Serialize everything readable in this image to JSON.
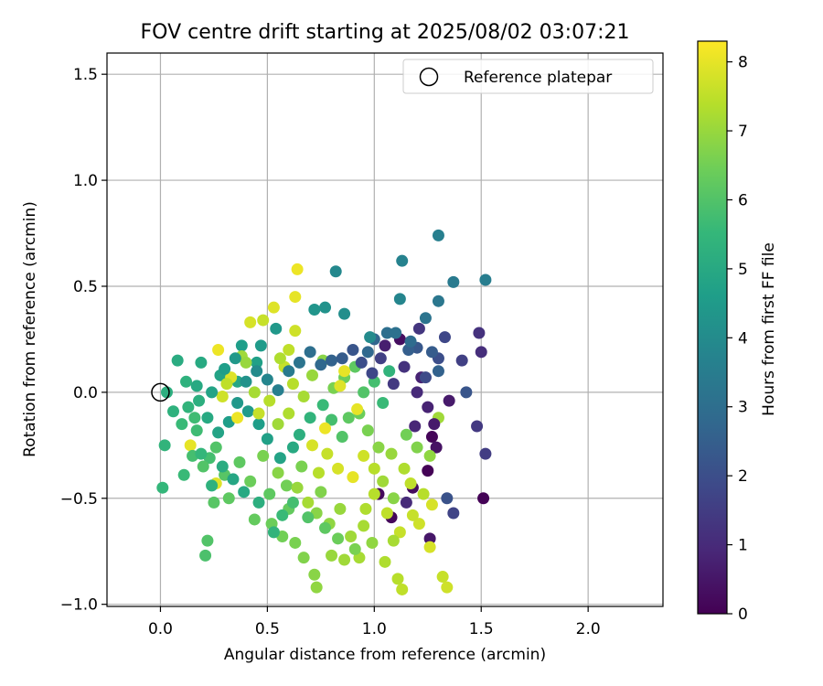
{
  "chart_data": {
    "type": "scatter",
    "title": "FOV centre drift starting at 2025/08/02 03:07:21",
    "xlabel": "Angular distance from reference (arcmin)",
    "ylabel": "Rotation from reference (arcmin)",
    "xlim": [
      -0.25,
      2.35
    ],
    "ylim": [
      -1.01,
      1.6
    ],
    "xticks": [
      0.0,
      0.5,
      1.0,
      1.5,
      2.0
    ],
    "xtick_labels": [
      "0.0",
      "0.5",
      "1.0",
      "1.5",
      "2.0"
    ],
    "yticks": [
      -1.0,
      -0.5,
      0.0,
      0.5,
      1.0,
      1.5
    ],
    "ytick_labels": [
      "−1.0",
      "−0.5",
      "0.0",
      "0.5",
      "1.0",
      "1.5"
    ],
    "grid": true,
    "legend": {
      "placement": "top-right",
      "entries": [
        "Reference platepar"
      ]
    },
    "reference_point": {
      "label": "Reference platepar",
      "x": 0.0,
      "y": 0.0
    },
    "colorbar": {
      "label": "Hours from first FF file",
      "colormap": "viridis",
      "range": [
        0,
        8.3
      ],
      "ticks": [
        0,
        1,
        2,
        3,
        4,
        5,
        6,
        7,
        8
      ],
      "tick_labels": [
        "0",
        "1",
        "2",
        "3",
        "4",
        "5",
        "6",
        "7",
        "8"
      ]
    },
    "colormap_stops": [
      "#440154",
      "#482878",
      "#3e4989",
      "#31688e",
      "#26828e",
      "#1f9e89",
      "#35b779",
      "#6ece58",
      "#b5de2b",
      "#fde725"
    ],
    "series": [
      {
        "points": [
          [
            1.51,
            -0.5,
            0.05
          ],
          [
            1.25,
            -0.37,
            0.05
          ],
          [
            1.27,
            -0.21,
            0.1
          ],
          [
            1.08,
            -0.59,
            0.15
          ],
          [
            1.02,
            -0.48,
            0.2
          ],
          [
            1.18,
            -0.45,
            0.25
          ],
          [
            1.12,
            0.25,
            0.3
          ],
          [
            1.29,
            -0.26,
            0.4
          ],
          [
            1.26,
            -0.69,
            0.5
          ],
          [
            1.35,
            -0.04,
            0.6
          ],
          [
            1.05,
            0.22,
            0.7
          ],
          [
            1.22,
            0.07,
            0.8
          ],
          [
            1.19,
            -0.16,
            0.9
          ],
          [
            1.15,
            -0.52,
            1.0
          ],
          [
            1.5,
            0.19,
            1.1
          ],
          [
            1.49,
            0.28,
            1.2
          ],
          [
            1.21,
            0.3,
            1.3
          ],
          [
            1.48,
            -0.16,
            1.4
          ],
          [
            1.52,
            -0.29,
            1.5
          ],
          [
            1.41,
            0.15,
            1.6
          ],
          [
            1.37,
            -0.57,
            1.7
          ],
          [
            1.33,
            0.26,
            1.8
          ],
          [
            1.24,
            0.07,
            1.9
          ],
          [
            1.3,
            0.16,
            2.0
          ],
          [
            1.34,
            -0.5,
            2.1
          ],
          [
            1.43,
            0.0,
            2.2
          ],
          [
            1.2,
            0.21,
            2.3
          ],
          [
            1.27,
            0.19,
            2.4
          ],
          [
            1.16,
            0.2,
            2.5
          ],
          [
            1.3,
            0.1,
            2.6
          ],
          [
            1.0,
            0.25,
            2.7
          ],
          [
            0.97,
            0.19,
            2.8
          ],
          [
            1.17,
            0.24,
            2.9
          ],
          [
            1.06,
            0.28,
            3.0
          ],
          [
            1.1,
            0.28,
            3.1
          ],
          [
            1.24,
            0.35,
            3.2
          ],
          [
            1.3,
            0.43,
            3.3
          ],
          [
            1.37,
            0.52,
            3.4
          ],
          [
            1.52,
            0.53,
            3.5
          ],
          [
            1.3,
            0.74,
            3.6
          ],
          [
            1.13,
            0.62,
            3.7
          ],
          [
            1.12,
            0.44,
            3.8
          ],
          [
            0.82,
            0.57,
            3.9
          ],
          [
            0.98,
            0.26,
            4.0
          ],
          [
            0.86,
            0.37,
            4.1
          ],
          [
            0.77,
            0.4,
            4.2
          ],
          [
            0.72,
            0.39,
            4.3
          ],
          [
            0.54,
            0.3,
            4.4
          ],
          [
            0.47,
            0.22,
            4.5
          ],
          [
            0.38,
            0.22,
            4.6
          ],
          [
            0.45,
            0.14,
            4.7
          ],
          [
            0.28,
            0.08,
            4.8
          ],
          [
            0.36,
            0.05,
            4.9
          ],
          [
            0.19,
            0.14,
            5.0
          ],
          [
            0.08,
            0.15,
            5.1
          ],
          [
            0.03,
            0.0,
            5.2
          ],
          [
            0.06,
            -0.09,
            5.3
          ],
          [
            0.02,
            -0.25,
            5.4
          ],
          [
            0.01,
            -0.45,
            5.5
          ],
          [
            0.11,
            -0.39,
            5.6
          ],
          [
            0.17,
            -0.18,
            5.7
          ],
          [
            0.23,
            -0.31,
            5.8
          ],
          [
            0.21,
            -0.77,
            5.9
          ],
          [
            0.22,
            -0.7,
            6.0
          ],
          [
            0.25,
            -0.52,
            6.1
          ],
          [
            0.32,
            -0.5,
            6.2
          ],
          [
            0.44,
            -0.6,
            6.3
          ],
          [
            0.52,
            -0.62,
            6.4
          ],
          [
            0.57,
            -0.68,
            6.5
          ],
          [
            0.63,
            -0.71,
            6.6
          ],
          [
            0.67,
            -0.78,
            6.7
          ],
          [
            0.72,
            -0.86,
            6.8
          ],
          [
            0.73,
            -0.92,
            6.9
          ],
          [
            0.8,
            -0.77,
            7.0
          ],
          [
            0.86,
            -0.79,
            7.1
          ],
          [
            0.93,
            -0.78,
            7.2
          ],
          [
            1.05,
            -0.8,
            7.3
          ],
          [
            1.11,
            -0.88,
            7.4
          ],
          [
            1.13,
            -0.93,
            7.5
          ],
          [
            1.32,
            -0.87,
            7.6
          ],
          [
            1.34,
            -0.92,
            7.7
          ],
          [
            1.26,
            -0.73,
            7.8
          ],
          [
            0.26,
            -0.43,
            7.9
          ],
          [
            0.14,
            -0.25,
            8.0
          ],
          [
            0.27,
            0.2,
            8.1
          ],
          [
            0.26,
            -0.26,
            6.0
          ],
          [
            0.3,
            -0.39,
            6.1
          ],
          [
            0.51,
            -0.48,
            6.2
          ],
          [
            0.6,
            -0.55,
            6.3
          ],
          [
            0.59,
            -0.44,
            6.5
          ],
          [
            0.66,
            -0.35,
            6.6
          ],
          [
            0.75,
            -0.47,
            6.7
          ],
          [
            0.73,
            -0.57,
            6.8
          ],
          [
            0.79,
            -0.62,
            6.9
          ],
          [
            0.84,
            -0.55,
            7.0
          ],
          [
            0.89,
            -0.68,
            7.1
          ],
          [
            0.95,
            -0.63,
            7.2
          ],
          [
            0.96,
            -0.55,
            7.3
          ],
          [
            1.0,
            -0.48,
            7.4
          ],
          [
            1.06,
            -0.57,
            7.5
          ],
          [
            1.12,
            -0.66,
            7.6
          ],
          [
            1.21,
            -0.62,
            7.7
          ],
          [
            1.27,
            -0.53,
            7.8
          ],
          [
            1.17,
            -0.43,
            7.5
          ],
          [
            1.14,
            -0.36,
            7.3
          ],
          [
            1.08,
            -0.29,
            7.0
          ],
          [
            1.02,
            -0.26,
            6.8
          ],
          [
            0.97,
            -0.18,
            6.6
          ],
          [
            0.93,
            -0.1,
            6.4
          ],
          [
            0.88,
            -0.12,
            6.2
          ],
          [
            0.85,
            -0.21,
            6.0
          ],
          [
            0.8,
            -0.13,
            5.8
          ],
          [
            0.76,
            -0.06,
            5.6
          ],
          [
            0.7,
            -0.12,
            5.4
          ],
          [
            0.65,
            -0.2,
            5.2
          ],
          [
            0.62,
            -0.26,
            5.0
          ],
          [
            0.56,
            -0.31,
            4.8
          ],
          [
            0.5,
            -0.22,
            4.7
          ],
          [
            0.46,
            -0.15,
            4.6
          ],
          [
            0.41,
            -0.09,
            4.5
          ],
          [
            0.36,
            -0.05,
            4.4
          ],
          [
            0.32,
            -0.14,
            4.6
          ],
          [
            0.27,
            -0.19,
            4.8
          ],
          [
            0.22,
            -0.12,
            5.0
          ],
          [
            0.18,
            -0.04,
            5.2
          ],
          [
            0.13,
            -0.07,
            5.4
          ],
          [
            0.1,
            -0.15,
            5.6
          ],
          [
            0.15,
            -0.3,
            5.8
          ],
          [
            0.2,
            -0.35,
            6.0
          ],
          [
            0.37,
            -0.33,
            6.2
          ],
          [
            0.42,
            -0.42,
            6.4
          ],
          [
            0.48,
            -0.3,
            6.6
          ],
          [
            0.55,
            -0.38,
            6.8
          ],
          [
            0.64,
            -0.45,
            7.0
          ],
          [
            0.69,
            -0.52,
            7.2
          ],
          [
            0.74,
            -0.38,
            7.4
          ],
          [
            0.78,
            -0.29,
            7.6
          ],
          [
            0.83,
            -0.36,
            7.8
          ],
          [
            0.9,
            -0.4,
            8.0
          ],
          [
            0.95,
            -0.3,
            7.7
          ],
          [
            1.0,
            -0.36,
            7.4
          ],
          [
            1.04,
            -0.42,
            7.1
          ],
          [
            1.09,
            -0.5,
            6.8
          ],
          [
            0.58,
            0.12,
            7.6
          ],
          [
            0.62,
            0.04,
            7.4
          ],
          [
            0.67,
            -0.02,
            7.2
          ],
          [
            0.71,
            0.08,
            7.0
          ],
          [
            0.76,
            0.15,
            6.8
          ],
          [
            0.81,
            0.02,
            6.6
          ],
          [
            0.86,
            0.07,
            6.4
          ],
          [
            0.91,
            0.12,
            6.2
          ],
          [
            0.95,
            0.0,
            6.0
          ],
          [
            1.0,
            0.05,
            5.8
          ],
          [
            1.04,
            -0.05,
            5.6
          ],
          [
            1.07,
            0.1,
            5.4
          ],
          [
            0.42,
            0.33,
            7.8
          ],
          [
            0.48,
            0.34,
            7.6
          ],
          [
            0.53,
            0.4,
            7.9
          ],
          [
            0.63,
            0.45,
            8.0
          ],
          [
            0.64,
            0.58,
            8.1
          ],
          [
            0.63,
            0.29,
            7.7
          ],
          [
            0.6,
            0.2,
            7.5
          ],
          [
            0.56,
            0.16,
            7.3
          ],
          [
            0.38,
            0.17,
            7.1
          ],
          [
            0.33,
            0.07,
            7.9
          ],
          [
            0.36,
            -0.12,
            8.1
          ],
          [
            0.46,
            -0.1,
            7.6
          ],
          [
            0.51,
            -0.04,
            7.4
          ],
          [
            0.44,
            0.0,
            7.2
          ],
          [
            0.4,
            0.14,
            7.0
          ],
          [
            0.31,
            0.04,
            7.5
          ],
          [
            0.29,
            -0.02,
            7.7
          ],
          [
            0.84,
            0.03,
            7.9
          ],
          [
            0.86,
            0.1,
            8.0
          ],
          [
            0.92,
            -0.08,
            8.0
          ],
          [
            0.77,
            -0.17,
            8.1
          ],
          [
            0.71,
            -0.25,
            7.8
          ],
          [
            0.6,
            -0.1,
            7.3
          ],
          [
            0.55,
            -0.15,
            7.1
          ],
          [
            1.15,
            -0.2,
            6.5
          ],
          [
            1.2,
            -0.26,
            6.7
          ],
          [
            1.26,
            -0.3,
            6.9
          ],
          [
            1.3,
            -0.12,
            7.1
          ],
          [
            1.23,
            -0.48,
            7.4
          ],
          [
            1.18,
            -0.58,
            7.6
          ],
          [
            1.09,
            -0.7,
            7.2
          ],
          [
            0.99,
            -0.71,
            6.9
          ],
          [
            0.91,
            -0.74,
            6.6
          ],
          [
            0.83,
            -0.69,
            6.4
          ],
          [
            0.77,
            -0.64,
            6.2
          ],
          [
            0.69,
            -0.59,
            6.0
          ],
          [
            0.62,
            -0.52,
            5.8
          ],
          [
            0.57,
            -0.58,
            5.6
          ],
          [
            0.53,
            -0.66,
            5.4
          ],
          [
            0.46,
            -0.52,
            5.2
          ],
          [
            0.39,
            -0.47,
            5.0
          ],
          [
            0.34,
            -0.41,
            4.9
          ],
          [
            0.29,
            -0.35,
            5.1
          ],
          [
            0.24,
            -0.44,
            5.3
          ],
          [
            0.19,
            -0.29,
            5.5
          ],
          [
            0.16,
            -0.12,
            5.7
          ],
          [
            0.12,
            0.05,
            5.3
          ],
          [
            0.17,
            0.03,
            5.0
          ],
          [
            0.24,
            0.0,
            4.8
          ],
          [
            0.3,
            0.11,
            4.6
          ],
          [
            0.35,
            0.16,
            4.4
          ],
          [
            0.4,
            0.05,
            4.2
          ],
          [
            0.45,
            0.1,
            4.0
          ],
          [
            0.5,
            0.06,
            3.8
          ],
          [
            0.55,
            0.01,
            3.6
          ],
          [
            0.6,
            0.1,
            3.4
          ],
          [
            0.65,
            0.14,
            3.2
          ],
          [
            0.7,
            0.19,
            3.0
          ],
          [
            0.75,
            0.13,
            2.8
          ],
          [
            0.8,
            0.15,
            2.6
          ],
          [
            0.85,
            0.16,
            2.4
          ],
          [
            0.9,
            0.2,
            2.2
          ],
          [
            0.94,
            0.14,
            2.0
          ],
          [
            0.99,
            0.09,
            1.8
          ],
          [
            1.03,
            0.16,
            1.6
          ],
          [
            1.09,
            0.04,
            1.4
          ],
          [
            1.14,
            0.12,
            1.2
          ],
          [
            1.2,
            0.0,
            1.0
          ],
          [
            1.25,
            -0.07,
            0.8
          ],
          [
            1.28,
            -0.15,
            0.6
          ]
        ]
      }
    ]
  }
}
